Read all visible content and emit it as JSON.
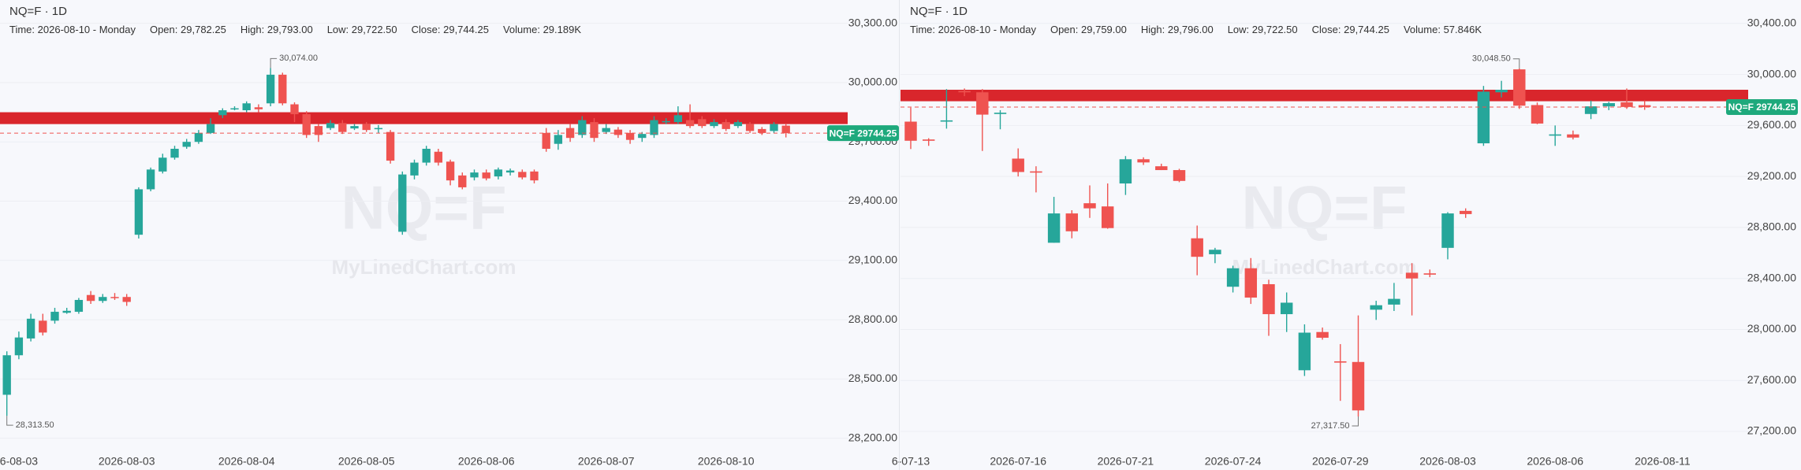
{
  "chart_data": [
    {
      "type": "candlestick",
      "title": "NQ=F · 1D",
      "info": [
        {
          "label": "Time:",
          "value": "2026-08-10 - Monday"
        },
        {
          "label": "Open:",
          "value": "29,782.25"
        },
        {
          "label": "High:",
          "value": "29,793.00"
        },
        {
          "label": "Low:",
          "value": "29,722.50"
        },
        {
          "label": "Close:",
          "value": "29,744.25"
        },
        {
          "label": "Volume:",
          "value": "29.189K"
        }
      ],
      "watermark": "NQ=F",
      "watermark_sub": "MyLinedChart.com",
      "categories": [
        null,
        "6-08-03",
        null,
        null,
        null,
        null,
        null,
        null,
        null,
        null,
        "2026-08-03",
        null,
        null,
        null,
        null,
        null,
        null,
        null,
        null,
        null,
        "2026-08-04",
        null,
        null,
        null,
        null,
        null,
        null,
        null,
        null,
        null,
        "2026-08-05",
        null,
        null,
        null,
        null,
        null,
        null,
        null,
        null,
        null,
        "2026-08-06",
        null,
        null,
        null,
        null,
        null,
        null,
        null,
        null,
        null,
        "2026-08-07",
        null,
        null,
        null,
        null,
        null,
        null,
        null,
        null,
        null,
        "2026-08-10",
        null,
        null,
        null,
        null,
        null
      ],
      "open": [
        28420,
        28620,
        28705,
        28795,
        28795,
        28835,
        28840,
        28925,
        28895,
        28915,
        28915,
        29230,
        29460,
        29550,
        29620,
        29675,
        29700,
        29745,
        29835,
        29865,
        29860,
        29875,
        29895,
        30040,
        29890,
        29840,
        29780,
        29770,
        29795,
        29768,
        29790,
        29765,
        29750,
        29245,
        29530,
        29595,
        29650,
        29600,
        29530,
        29520,
        29545,
        29525,
        29545,
        29548,
        29550,
        29745,
        29690,
        29770,
        29735,
        29800,
        29750,
        29762,
        29745,
        29720,
        29735,
        29800,
        29800,
        29810,
        29815,
        29780,
        29800,
        29780,
        29790,
        29765,
        29755,
        29782.25
      ],
      "high": [
        28640,
        28740,
        28830,
        28830,
        28860,
        28860,
        28910,
        28945,
        28930,
        28935,
        28930,
        29470,
        29570,
        29640,
        29680,
        29715,
        29760,
        29820,
        29870,
        29880,
        29905,
        29890,
        30074,
        30050,
        29900,
        29855,
        29790,
        29810,
        29810,
        29790,
        29800,
        29785,
        29760,
        29550,
        29610,
        29680,
        29665,
        29610,
        29545,
        29560,
        29560,
        29570,
        29565,
        29560,
        29560,
        29770,
        29760,
        29790,
        29830,
        29820,
        29790,
        29775,
        29760,
        29750,
        29830,
        29820,
        29880,
        29890,
        29830,
        29815,
        29815,
        29810,
        29800,
        29775,
        29800,
        29793
      ],
      "low": [
        28313.5,
        28600,
        28690,
        28720,
        28780,
        28830,
        28830,
        28880,
        28885,
        28900,
        28870,
        29211,
        29450,
        29540,
        29610,
        29665,
        29690,
        29740,
        29820,
        29860,
        29850,
        29850,
        29880,
        29885,
        29800,
        29720,
        29700,
        29760,
        29740,
        29760,
        29750,
        29745,
        29590,
        29230,
        29510,
        29580,
        29580,
        29480,
        29460,
        29505,
        29505,
        29510,
        29530,
        29510,
        29490,
        29650,
        29660,
        29700,
        29720,
        29700,
        29740,
        29720,
        29690,
        29700,
        29720,
        29790,
        29790,
        29770,
        29770,
        29770,
        29755,
        29770,
        29745,
        29735,
        29745,
        29722.5
      ],
      "close": [
        28620,
        28710,
        28805,
        28735,
        28840,
        28845,
        28900,
        28895,
        28915,
        28910,
        28890,
        29460,
        29560,
        29620,
        29665,
        29700,
        29745,
        29790,
        29860,
        29870,
        29895,
        29865,
        30040,
        29895,
        29840,
        29735,
        29735,
        29795,
        29750,
        29780,
        29760,
        29770,
        29605,
        29535,
        29595,
        29665,
        29595,
        29505,
        29470,
        29545,
        29515,
        29560,
        29555,
        29520,
        29505,
        29665,
        29735,
        29720,
        29810,
        29720,
        29770,
        29735,
        29710,
        29740,
        29810,
        29805,
        29835,
        29780,
        29780,
        29800,
        29765,
        29800,
        29755,
        29745,
        29790,
        29744.25
      ],
      "up_color": "#26a69a",
      "down_color": "#ef5350",
      "ylim": [
        28115,
        30418
      ],
      "yticks": [
        {
          "value": 28200,
          "label": "28,200.00"
        },
        {
          "value": 28500,
          "label": "28,500.00"
        },
        {
          "value": 28800,
          "label": "28,800.00"
        },
        {
          "value": 29100,
          "label": "29,100.00"
        },
        {
          "value": 29400,
          "label": "29,400.00"
        },
        {
          "value": 29700,
          "label": "29,700.00"
        },
        {
          "value": 30000,
          "label": "30,000.00"
        },
        {
          "value": 30300,
          "label": "30,300.00"
        }
      ],
      "grid": true,
      "zone": {
        "from": 29790,
        "to": 29850,
        "color": "#d9262c"
      },
      "last_price": 29744.25,
      "last_price_label": "NQ=F 29744.25",
      "annotations": [
        {
          "value": 30074,
          "label": "30,074.00"
        },
        {
          "value": 28313.5,
          "label": "28,313.50"
        }
      ]
    },
    {
      "type": "candlestick",
      "title": "NQ=F · 1D",
      "info": [
        {
          "label": "Time:",
          "value": "2026-08-10 - Monday"
        },
        {
          "label": "Open:",
          "value": "29,759.00"
        },
        {
          "label": "High:",
          "value": "29,796.00"
        },
        {
          "label": "Low:",
          "value": "29,722.50"
        },
        {
          "label": "Close:",
          "value": "29,744.25"
        },
        {
          "label": "Volume:",
          "value": "57.846K"
        }
      ],
      "watermark": "NQ=F",
      "watermark_sub": "MyLinedChart.com",
      "categories": [
        "6-07-13",
        null,
        null,
        null,
        null,
        null,
        "2026-07-16",
        null,
        null,
        null,
        null,
        null,
        "2026-07-21",
        null,
        null,
        null,
        null,
        null,
        "2026-07-24",
        null,
        null,
        null,
        null,
        null,
        "2026-07-29",
        null,
        null,
        null,
        null,
        null,
        "2026-08-03",
        null,
        null,
        null,
        null,
        null,
        "2026-08-06",
        null,
        null,
        null,
        null,
        null,
        "2026-08-11"
      ],
      "open": [
        29630,
        29490,
        29630,
        29870,
        29860,
        29690,
        29340,
        29240,
        28680,
        28910,
        28990,
        28965,
        29145,
        29335,
        29280,
        29250,
        28715,
        28590,
        28335,
        28480,
        28355,
        28120,
        27680,
        27980,
        27750,
        27745,
        28155,
        28195,
        28445,
        28440,
        28640,
        28930,
        29460,
        29860,
        30040,
        29760,
        29520,
        29530,
        29690,
        29750,
        29782,
        29759,
        null
      ],
      "high": [
        29740,
        29500,
        29885,
        29890,
        29885,
        29720,
        29420,
        29280,
        29040,
        28935,
        29130,
        29145,
        29360,
        29350,
        29300,
        29260,
        28815,
        28640,
        28500,
        28560,
        28390,
        28290,
        28040,
        28015,
        27885,
        28110,
        28225,
        28365,
        28520,
        28470,
        28920,
        28950,
        29910,
        29950,
        30048.5,
        29780,
        29600,
        29560,
        29795,
        29785,
        29890,
        29796,
        null
      ],
      "low": [
        29415,
        29440,
        29575,
        29830,
        29400,
        29570,
        29200,
        29075,
        28680,
        28715,
        28875,
        28790,
        29055,
        29290,
        29250,
        29155,
        28425,
        28520,
        28290,
        28200,
        27950,
        27980,
        27635,
        27920,
        27440,
        27317.5,
        28075,
        28145,
        28110,
        28410,
        28550,
        28875,
        29440,
        29820,
        29730,
        29610,
        29440,
        29490,
        29650,
        29720,
        29730,
        29722.5,
        null
      ],
      "close": [
        29480,
        29480,
        29640,
        29860,
        29685,
        29700,
        29235,
        29230,
        28910,
        28770,
        28950,
        28795,
        29335,
        29310,
        29250,
        29165,
        28570,
        28625,
        28480,
        28250,
        28120,
        28210,
        27975,
        27935,
        27740,
        27365,
        28190,
        28240,
        28400,
        28430,
        28910,
        28905,
        29865,
        29880,
        29755,
        29615,
        29530,
        29505,
        29750,
        29775,
        29745,
        29744.25,
        null
      ],
      "up_color": "#26a69a",
      "down_color": "#ef5350",
      "ylim": [
        27015,
        30584
      ],
      "yticks": [
        {
          "value": 27200,
          "label": "27,200.00"
        },
        {
          "value": 27600,
          "label": "27,600.00"
        },
        {
          "value": 28000,
          "label": "28,000.00"
        },
        {
          "value": 28400,
          "label": "28,400.00"
        },
        {
          "value": 28800,
          "label": "28,800.00"
        },
        {
          "value": 29200,
          "label": "29,200.00"
        },
        {
          "value": 29600,
          "label": "29,600.00"
        },
        {
          "value": 30000,
          "label": "30,000.00"
        },
        {
          "value": 30400,
          "label": "30,400.00"
        }
      ],
      "grid": true,
      "zone": {
        "from": 29790,
        "to": 29880,
        "color": "#d9262c"
      },
      "last_price": 29744.25,
      "last_price_label": "NQ=F 29744.25",
      "annotations": [
        {
          "value": 30048.5,
          "label": "30,048.50"
        },
        {
          "value": 27317.5,
          "label": "27,317.50"
        }
      ]
    }
  ]
}
